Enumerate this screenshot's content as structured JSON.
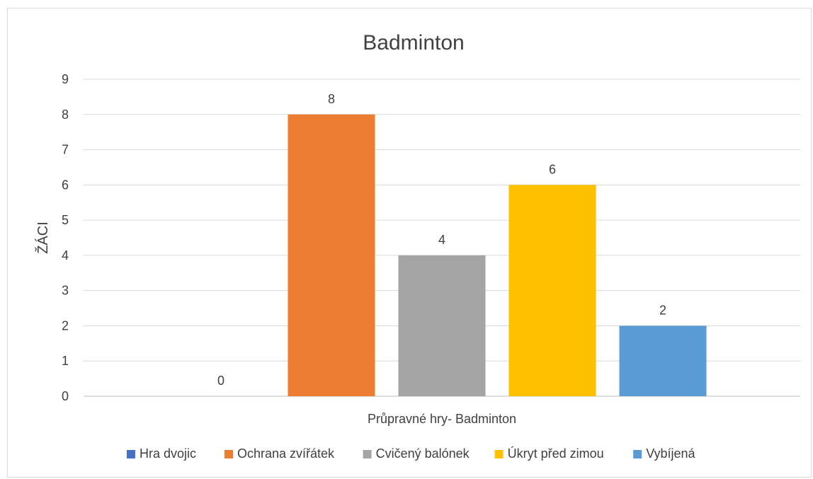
{
  "chart_data": {
    "type": "bar",
    "title": "Badminton",
    "xlabel": "Průpravné hry- Badminton",
    "ylabel": "ŽÁCI",
    "ylim": [
      0,
      9
    ],
    "y_ticks": [
      0,
      1,
      2,
      3,
      4,
      5,
      6,
      7,
      8,
      9
    ],
    "grid": true,
    "legend_position": "bottom",
    "series": [
      {
        "name": "Hra dvojic",
        "value": 0,
        "color": "#4472c4"
      },
      {
        "name": "Ochrana zvířátek",
        "value": 8,
        "color": "#ed7d31"
      },
      {
        "name": "Cvičený balónek",
        "value": 4,
        "color": "#a5a5a5"
      },
      {
        "name": "Úkryt před zimou",
        "value": 6,
        "color": "#ffc000"
      },
      {
        "name": "Vybíjená",
        "value": 2,
        "color": "#5b9bd5"
      }
    ]
  }
}
